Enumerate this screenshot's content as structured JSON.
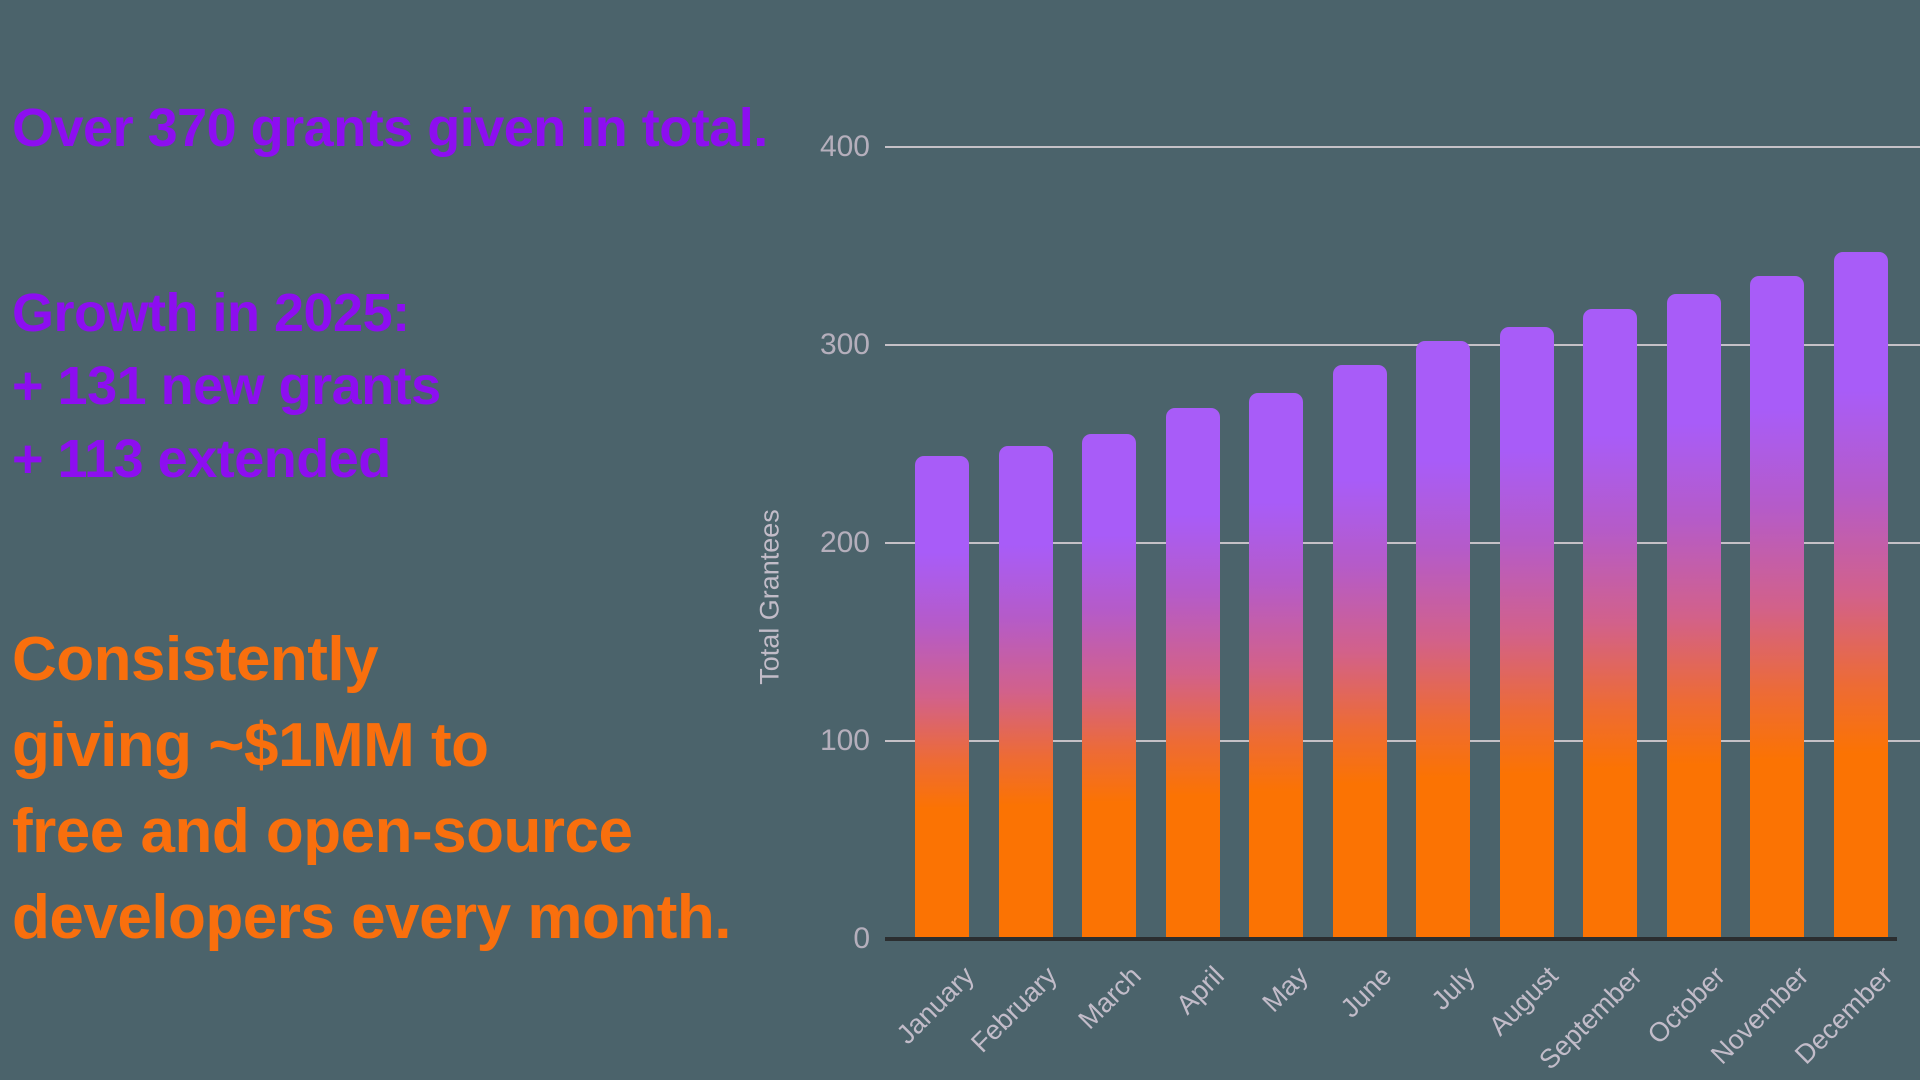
{
  "panel": {
    "headline": "Over 370 grants given in total.",
    "growth": {
      "title": "Growth in 2025:",
      "line1": "+ 131 new grants",
      "line2": "+ 113 extended"
    },
    "giving": {
      "line1": "Consistently",
      "line2": "giving ~$1MM to",
      "line3": "free and open-source",
      "line4": "developers every month."
    }
  },
  "colors": {
    "background": "#4B636B",
    "purple_text": "#8D0EF0",
    "orange_text": "#F96F0D",
    "bar_top": "#A85CF8",
    "bar_mid": "#D2618A",
    "bar_bottom": "#FB7303",
    "gridline": "#C5C1C7",
    "axis_line": "#2B2E30",
    "tick_label": "#B5AFBC",
    "month_label": "#C2BCC9",
    "axis_title": "#C2BCC8"
  },
  "chart_data": {
    "type": "bar",
    "title": "",
    "xlabel": "",
    "ylabel": "Total Grantees",
    "categories": [
      "January",
      "February",
      "March",
      "April",
      "May",
      "June",
      "July",
      "August",
      "September",
      "October",
      "November",
      "December"
    ],
    "values": [
      244,
      249,
      255,
      268,
      276,
      290,
      302,
      309,
      318,
      326,
      335,
      347
    ],
    "ylim": [
      0,
      400
    ],
    "yticks": [
      0,
      100,
      200,
      300,
      400
    ],
    "grid": true,
    "legend": "none",
    "x_tick_rotation_deg": -45,
    "bar_style": "vertical gradient, purple top to orange bottom, rounded top corners"
  }
}
